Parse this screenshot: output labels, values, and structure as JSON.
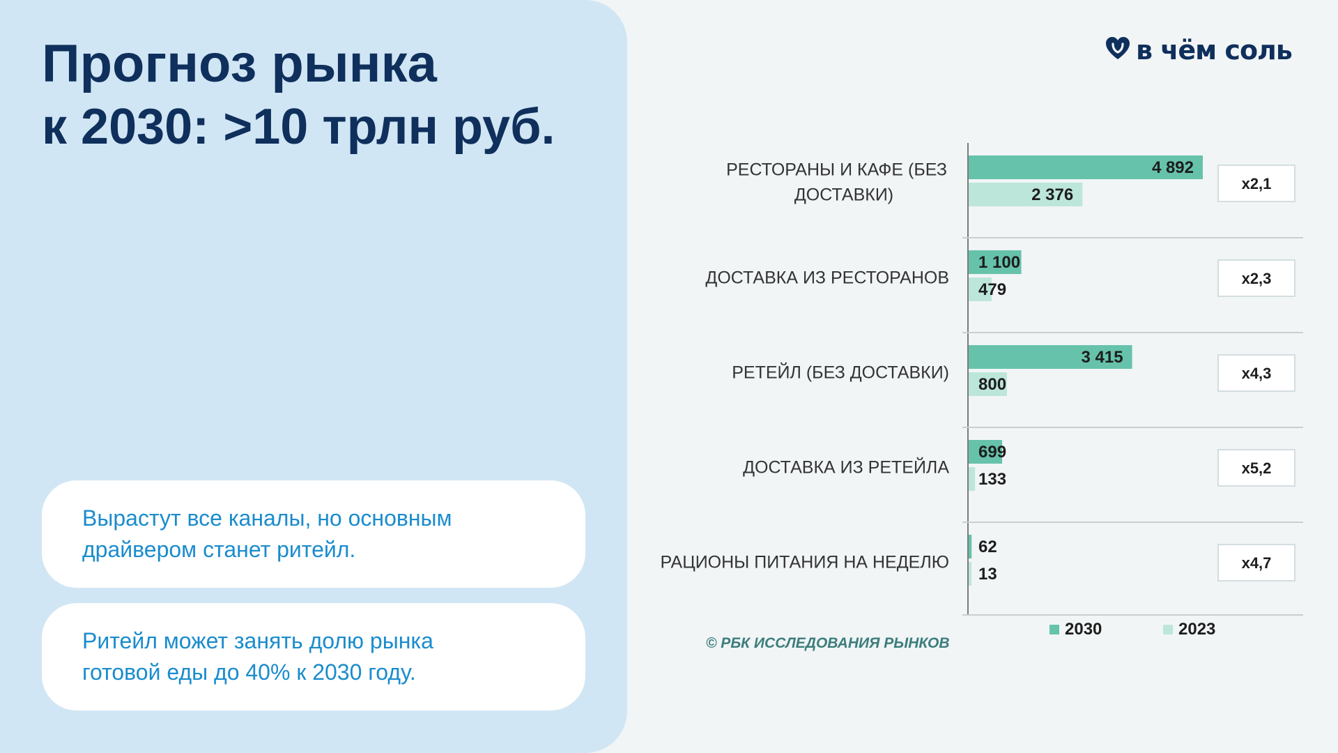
{
  "title": {
    "line1": "Прогноз рынка",
    "line2": "к 2030: >10 трлн руб."
  },
  "cards": [
    {
      "text": "Вырастут все каналы, но основным драйвером станет ритейл."
    },
    {
      "text": "Ритейл может занять долю рынка готовой еды до 40% к 2030 году."
    }
  ],
  "logo": {
    "text": "в чём соль",
    "icon": "heart-icon"
  },
  "credit": "© РБК ИССЛЕДОВАНИЯ РЫНКОВ",
  "colors": {
    "panel": "#d1e6f4",
    "title": "#0f2f5c",
    "card_text": "#1a8ccd",
    "series_2030": "#66c2ab",
    "series_2023": "#bde6da"
  },
  "chart_data": {
    "type": "bar",
    "orientation": "horizontal",
    "categories": [
      "РЕСТОРАНЫ И КАФЕ (БЕЗ ДОСТАВКИ)",
      "ДОСТАВКА ИЗ РЕСТОРАНОВ",
      "РЕТЕЙЛ (БЕЗ ДОСТАВКИ)",
      "ДОСТАВКА ИЗ РЕТЕЙЛА",
      "РАЦИОНЫ ПИТАНИЯ НА НЕДЕЛЮ"
    ],
    "series": [
      {
        "name": "2030",
        "values": [
          4892,
          1100,
          3415,
          699,
          62
        ],
        "labels": [
          "4 892",
          "1 100",
          "3 415",
          "699",
          "62"
        ],
        "color": "#66c2ab"
      },
      {
        "name": "2023",
        "values": [
          2376,
          479,
          800,
          133,
          13
        ],
        "labels": [
          "2 376",
          "479",
          "800",
          "133",
          "13"
        ],
        "color": "#bde6da"
      }
    ],
    "multipliers": [
      "x2,1",
      "x2,3",
      "x4,3",
      "x5,2",
      "x4,7"
    ],
    "xlim": [
      0,
      5800
    ],
    "legend": "bottom",
    "grid": false
  }
}
